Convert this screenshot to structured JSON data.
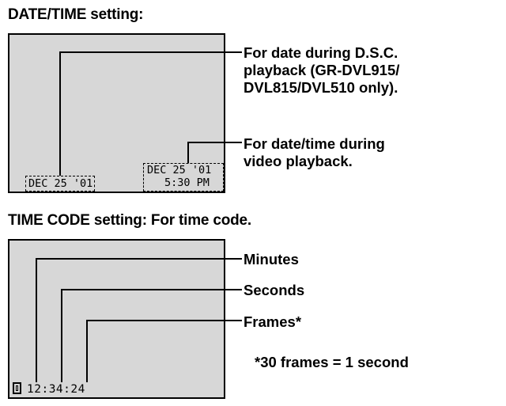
{
  "datetime_section": {
    "heading": "DATE/TIME setting:",
    "dsc_date": "DEC 25 '01",
    "video_date": "DEC 25 '01",
    "video_time": "5:30 PM",
    "callout_dsc": [
      "For date during D.S.C.",
      "playback (GR-DVL915/",
      "DVL815/DVL510 only)."
    ],
    "callout_video": [
      "For date/time during",
      "video playback."
    ]
  },
  "timecode_section": {
    "heading": "TIME CODE setting: For time code.",
    "timecode": "12:34:24",
    "label_minutes": "Minutes",
    "label_seconds": "Seconds",
    "label_frames": "Frames*",
    "footnote": "*30 frames = 1 second",
    "icon": "cassette-icon"
  }
}
